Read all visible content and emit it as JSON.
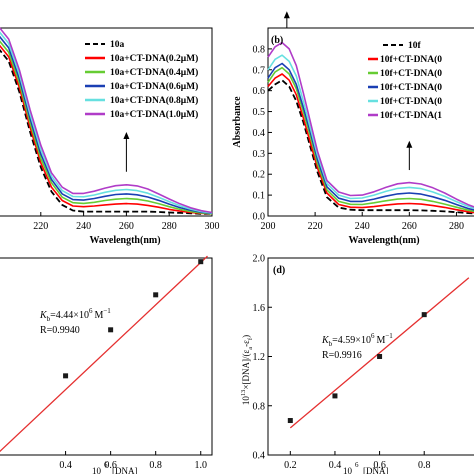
{
  "chart_data": [
    {
      "panel": "a",
      "type": "line",
      "xlabel": "Wavelength(nm)",
      "ylabel": "",
      "xlim": [
        200,
        300
      ],
      "ylim": [
        0,
        0.85
      ],
      "xticks": [
        220,
        240,
        260,
        280,
        300
      ],
      "yticks": [],
      "legend": "top-right",
      "x": [
        200,
        205,
        210,
        215,
        220,
        225,
        230,
        235,
        240,
        245,
        250,
        255,
        260,
        265,
        270,
        275,
        280,
        285,
        290,
        295,
        300
      ],
      "series": [
        {
          "name": "10a",
          "color": "#000000",
          "dash": true,
          "values": [
            0.76,
            0.7,
            0.56,
            0.38,
            0.22,
            0.11,
            0.05,
            0.025,
            0.02,
            0.02,
            0.02,
            0.02,
            0.02,
            0.02,
            0.02,
            0.018,
            0.016,
            0.014,
            0.012,
            0.01,
            0.01
          ]
        },
        {
          "name": "10a+CT-DNA(0.2μM)",
          "color": "#ff0000",
          "values": [
            0.78,
            0.72,
            0.58,
            0.4,
            0.24,
            0.13,
            0.07,
            0.045,
            0.042,
            0.045,
            0.05,
            0.054,
            0.056,
            0.054,
            0.048,
            0.04,
            0.03,
            0.022,
            0.016,
            0.012,
            0.01
          ]
        },
        {
          "name": "10a+CT-DNA(0.4μM)",
          "color": "#66cc33",
          "values": [
            0.8,
            0.74,
            0.6,
            0.42,
            0.26,
            0.15,
            0.085,
            0.06,
            0.057,
            0.062,
            0.07,
            0.076,
            0.079,
            0.076,
            0.068,
            0.056,
            0.042,
            0.03,
            0.02,
            0.014,
            0.01
          ]
        },
        {
          "name": "10a+CT-DNA(0.6μM)",
          "color": "#1a3fb3",
          "values": [
            0.82,
            0.76,
            0.62,
            0.44,
            0.28,
            0.165,
            0.1,
            0.074,
            0.072,
            0.079,
            0.089,
            0.097,
            0.1,
            0.096,
            0.086,
            0.071,
            0.054,
            0.038,
            0.026,
            0.017,
            0.012
          ]
        },
        {
          "name": "10a+CT-DNA(0.8μM)",
          "color": "#66e0e0",
          "values": [
            0.84,
            0.78,
            0.64,
            0.46,
            0.3,
            0.18,
            0.115,
            0.088,
            0.087,
            0.095,
            0.107,
            0.116,
            0.12,
            0.115,
            0.103,
            0.085,
            0.065,
            0.046,
            0.031,
            0.02,
            0.014
          ]
        },
        {
          "name": "10a+CT-DNA(1.0μM)",
          "color": "#b03cc8",
          "values": [
            0.86,
            0.8,
            0.66,
            0.48,
            0.32,
            0.195,
            0.13,
            0.102,
            0.102,
            0.112,
            0.126,
            0.137,
            0.141,
            0.136,
            0.122,
            0.1,
            0.077,
            0.055,
            0.037,
            0.024,
            0.016
          ]
        }
      ]
    },
    {
      "panel": "b",
      "type": "line",
      "xlabel": "Wavelength(nm)",
      "ylabel": "Absorbance",
      "xlim": [
        200,
        290
      ],
      "ylim": [
        0,
        0.9
      ],
      "xticks": [
        200,
        220,
        240,
        260,
        280
      ],
      "yticks": [
        0.0,
        0.1,
        0.2,
        0.3,
        0.4,
        0.5,
        0.6,
        0.7,
        0.8
      ],
      "legend": "top-right",
      "x": [
        200,
        203,
        206,
        209,
        212,
        215,
        218,
        221,
        225,
        230,
        235,
        240,
        245,
        250,
        255,
        260,
        265,
        270,
        275,
        280,
        285,
        290
      ],
      "series": [
        {
          "name": "10f",
          "color": "#000000",
          "dash": true,
          "values": [
            0.6,
            0.63,
            0.65,
            0.62,
            0.55,
            0.45,
            0.33,
            0.21,
            0.09,
            0.04,
            0.03,
            0.028,
            0.028,
            0.028,
            0.028,
            0.028,
            0.027,
            0.025,
            0.022,
            0.018,
            0.014,
            0.01
          ]
        },
        {
          "name": "10f+CT-DNA(0.2μM)",
          "color": "#ff0000",
          "values": [
            0.62,
            0.66,
            0.68,
            0.65,
            0.58,
            0.47,
            0.35,
            0.23,
            0.11,
            0.055,
            0.042,
            0.04,
            0.045,
            0.052,
            0.058,
            0.06,
            0.057,
            0.05,
            0.041,
            0.03,
            0.02,
            0.013
          ]
        },
        {
          "name": "10f+CT-DNA(0.4μM)",
          "color": "#66cc33",
          "values": [
            0.64,
            0.69,
            0.71,
            0.68,
            0.61,
            0.5,
            0.38,
            0.25,
            0.125,
            0.07,
            0.056,
            0.055,
            0.063,
            0.073,
            0.081,
            0.084,
            0.08,
            0.07,
            0.057,
            0.042,
            0.028,
            0.017
          ]
        },
        {
          "name": "10f+CT-DNA(0.6μM)",
          "color": "#1a3fb3",
          "values": [
            0.66,
            0.71,
            0.73,
            0.7,
            0.63,
            0.52,
            0.4,
            0.27,
            0.14,
            0.085,
            0.07,
            0.07,
            0.081,
            0.095,
            0.106,
            0.11,
            0.105,
            0.092,
            0.075,
            0.055,
            0.036,
            0.022
          ]
        },
        {
          "name": "10f+CT-DNA(0.8μM)",
          "color": "#66e0e0",
          "values": [
            0.7,
            0.75,
            0.77,
            0.74,
            0.67,
            0.55,
            0.42,
            0.29,
            0.155,
            0.1,
            0.084,
            0.086,
            0.1,
            0.118,
            0.132,
            0.137,
            0.131,
            0.115,
            0.094,
            0.069,
            0.046,
            0.028
          ]
        },
        {
          "name": "10f+CT-DNA(1.0μM)",
          "color": "#b03cc8",
          "values": [
            0.76,
            0.81,
            0.83,
            0.8,
            0.72,
            0.59,
            0.45,
            0.31,
            0.17,
            0.115,
            0.098,
            0.1,
            0.116,
            0.137,
            0.154,
            0.16,
            0.153,
            0.135,
            0.11,
            0.081,
            0.054,
            0.033
          ]
        }
      ]
    },
    {
      "panel": "c",
      "type": "scatter",
      "xlabel": "",
      "ylabel": "",
      "xlim": [
        0.1,
        1.05
      ],
      "ylim": [
        0.55,
        1.62
      ],
      "xticks": [
        0.4,
        0.6,
        0.8,
        1.0
      ],
      "yticks": [],
      "annotations": [
        "K_b=4.44×10^6 M^-1",
        "R=0.9940"
      ],
      "points": [
        {
          "x": 0.4,
          "y": 0.98
        },
        {
          "x": 0.6,
          "y": 1.23
        },
        {
          "x": 0.8,
          "y": 1.42
        },
        {
          "x": 1.0,
          "y": 1.6
        }
      ],
      "fit": {
        "x": [
          0.1,
          1.03
        ],
        "y": [
          0.56,
          1.63
        ]
      }
    },
    {
      "panel": "d",
      "type": "scatter",
      "xlabel": "",
      "ylabel": "10^13×[DNA]/(ε_a-ε_f)",
      "xlim": [
        0.1,
        1.05
      ],
      "ylim": [
        0.4,
        2.0
      ],
      "xticks": [
        0.2,
        0.4,
        0.6,
        0.8
      ],
      "yticks": [
        0.4,
        0.8,
        1.2,
        1.6,
        2.0
      ],
      "annotations": [
        "K_b=4.59×10^6 M^-1",
        "R=0.9916"
      ],
      "points": [
        {
          "x": 0.2,
          "y": 0.68
        },
        {
          "x": 0.4,
          "y": 0.88
        },
        {
          "x": 0.6,
          "y": 1.2
        },
        {
          "x": 0.8,
          "y": 1.54
        }
      ],
      "fit": {
        "x": [
          0.2,
          1.0
        ],
        "y": [
          0.62,
          1.84
        ]
      }
    }
  ],
  "panel_labels": {
    "b": "(b)",
    "d": "(d)"
  },
  "legend_a": [
    "10a",
    "10a+CT-DNA(0.2μM)",
    "10a+CT-DNA(0.4μM)",
    "10a+CT-DNA(0.6μM)",
    "10a+CT-DNA(0.8μM)",
    "10a+CT-DNA(1.0μM)"
  ],
  "legend_b": [
    "10f",
    "10f+CT-DNA(0",
    "10f+CT-DNA(0",
    "10f+CT-DNA(0",
    "10f+CT-DNA(0",
    "10f+CT-DNA(1"
  ],
  "annot_c": {
    "kb": "K",
    "kb_sub": "b",
    "kb_val": "=4.44×10",
    "kb_exp": "6",
    "kb_unit": "M",
    "kb_unit_exp": "−1",
    "r": "R=0.9940"
  },
  "annot_d": {
    "kb": "K",
    "kb_sub": "b",
    "kb_val": "=4.59×10",
    "kb_exp": "6",
    "kb_unit": "M",
    "kb_unit_exp": "−1",
    "r": "R=0.9916"
  },
  "ylabel_d": {
    "pre": "10",
    "pre_exp": "13",
    "main": "×[DNA]/(ε",
    "sub1": "a",
    "mid": "-ε",
    "sub2": "f",
    "end": ")"
  },
  "colors": {
    "fit_line": "#e53030",
    "marker": "#1a1a1a",
    "axis": "#000000"
  }
}
